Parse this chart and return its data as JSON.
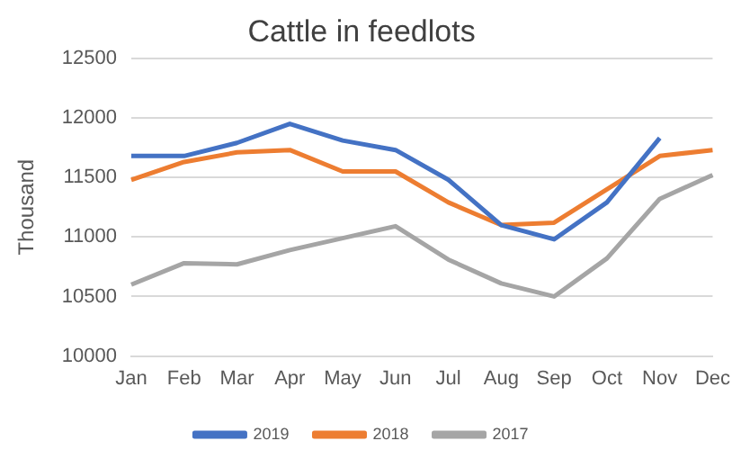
{
  "chart_data": {
    "type": "line",
    "title": "Cattle in feedlots",
    "ylabel": "Thousand",
    "categories": [
      "Jan",
      "Feb",
      "Mar",
      "Apr",
      "May",
      "Jun",
      "Jul",
      "Aug",
      "Sep",
      "Oct",
      "Nov",
      "Dec"
    ],
    "series": [
      {
        "name": "2019",
        "color": "#4472c4",
        "values": [
          11680,
          11680,
          11790,
          11950,
          11810,
          11730,
          11480,
          11100,
          10980,
          11290,
          11830,
          null
        ]
      },
      {
        "name": "2018",
        "color": "#ed7d31",
        "values": [
          11480,
          11630,
          11710,
          11730,
          11550,
          11550,
          11290,
          11100,
          11120,
          11400,
          11680,
          11730
        ]
      },
      {
        "name": "2017",
        "color": "#a5a5a5",
        "values": [
          10600,
          10780,
          10770,
          10890,
          10990,
          11090,
          10810,
          10610,
          10500,
          10820,
          11320,
          11520
        ]
      }
    ],
    "ylim": [
      10000,
      12500
    ],
    "yticks": [
      10000,
      10500,
      11000,
      11500,
      12000,
      12500
    ],
    "grid": "y",
    "legend": "bottom",
    "marker": "none",
    "line_style": "solid"
  }
}
